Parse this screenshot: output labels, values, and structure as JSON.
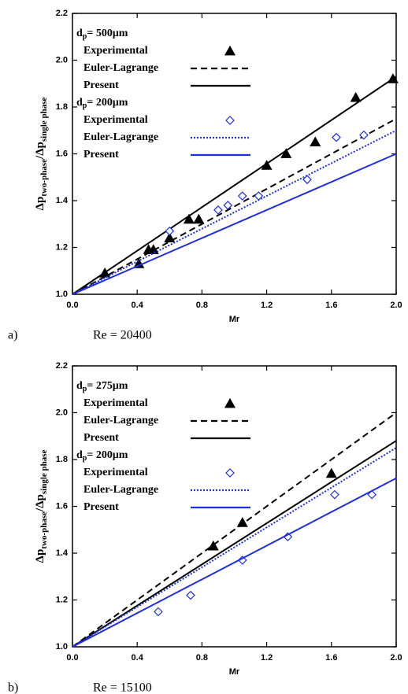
{
  "chart_data": [
    {
      "type": "line",
      "caption_label": "a)",
      "caption": "Re = 20400",
      "x_label": "Mr",
      "y_label": {
        "main1": "Δp",
        "sub1": "two-phase",
        "sep": "/",
        "main2": "Δp",
        "sub2": "single phase"
      },
      "xlim": [
        0,
        2
      ],
      "ylim": [
        1,
        2.2
      ],
      "xticks": [
        {
          "value": 0,
          "label": "0.0"
        },
        {
          "value": 0.4,
          "label": "0.4"
        },
        {
          "value": 0.8,
          "label": "0.8"
        },
        {
          "value": 1.2,
          "label": "1.2"
        },
        {
          "value": 1.6,
          "label": "1.6"
        },
        {
          "value": 2,
          "label": "2.0"
        }
      ],
      "yticks": [
        {
          "value": 1,
          "label": "1.0"
        },
        {
          "value": 1.2,
          "label": "1.2"
        },
        {
          "value": 1.4,
          "label": "1.4"
        },
        {
          "value": 1.6,
          "label": "1.6"
        },
        {
          "value": 1.8,
          "label": "1.8"
        },
        {
          "value": 2,
          "label": "2.0"
        },
        {
          "value": 2.2,
          "label": "2.2"
        }
      ],
      "groups": [
        {
          "heading": {
            "main": "d",
            "sub": "p",
            "rest": "= 500μm"
          },
          "series": [
            {
              "name": "Experimental",
              "style": "triangle",
              "color": "#000000",
              "x": [
                0.2,
                0.41,
                0.47,
                0.5,
                0.6,
                0.72,
                0.78,
                1.2,
                1.32,
                1.5,
                1.75,
                1.98
              ],
              "values": [
                1.09,
                1.13,
                1.19,
                1.19,
                1.24,
                1.32,
                1.32,
                1.55,
                1.6,
                1.65,
                1.84,
                1.92
              ]
            },
            {
              "name": "Euler-Lagrange",
              "style": "dashed",
              "color": "#000000",
              "x": [
                0,
                2
              ],
              "values": [
                1,
                1.75
              ]
            },
            {
              "name": "Present",
              "style": "solid",
              "color": "#000000",
              "x": [
                0,
                2
              ],
              "values": [
                1,
                1.93
              ]
            }
          ]
        },
        {
          "heading": {
            "main": "d",
            "sub": "p",
            "rest": "= 200μm"
          },
          "series": [
            {
              "name": "Experimental",
              "style": "diamond",
              "color": "#1f2fe0",
              "x": [
                0.6,
                0.9,
                0.96,
                1.05,
                1.15,
                1.45,
                1.63,
                1.8
              ],
              "values": [
                1.27,
                1.36,
                1.38,
                1.42,
                1.42,
                1.49,
                1.67,
                1.68
              ]
            },
            {
              "name": "Euler-Lagrange",
              "style": "dotted",
              "color": "#1f2fe0",
              "x": [
                0,
                2
              ],
              "values": [
                1,
                1.7
              ]
            },
            {
              "name": "Present",
              "style": "solid",
              "color": "#1f2fe0",
              "x": [
                0,
                2
              ],
              "values": [
                1,
                1.6
              ]
            }
          ]
        }
      ]
    },
    {
      "type": "line",
      "caption_label": "b)",
      "caption": "Re = 15100",
      "x_label": "Mr",
      "y_label": {
        "main1": "Δp",
        "sub1": "two-phase",
        "sep": "/",
        "main2": "Δp",
        "sub2": "single phase"
      },
      "xlim": [
        0,
        2
      ],
      "ylim": [
        1,
        2.2
      ],
      "xticks": [
        {
          "value": 0,
          "label": "0.0"
        },
        {
          "value": 0.4,
          "label": "0.4"
        },
        {
          "value": 0.8,
          "label": "0.8"
        },
        {
          "value": 1.2,
          "label": "1.2"
        },
        {
          "value": 1.6,
          "label": "1.6"
        },
        {
          "value": 2,
          "label": "2.0"
        }
      ],
      "yticks": [
        {
          "value": 1,
          "label": "1.0"
        },
        {
          "value": 1.2,
          "label": "1.2"
        },
        {
          "value": 1.4,
          "label": "1.4"
        },
        {
          "value": 1.6,
          "label": "1.6"
        },
        {
          "value": 1.8,
          "label": "1.8"
        },
        {
          "value": 2,
          "label": "2.0"
        },
        {
          "value": 2.2,
          "label": "2.2"
        }
      ],
      "groups": [
        {
          "heading": {
            "main": "d",
            "sub": "p",
            "rest": "= 275μm"
          },
          "series": [
            {
              "name": "Experimental",
              "style": "triangle",
              "color": "#000000",
              "x": [
                0.87,
                1.05,
                1.6
              ],
              "values": [
                1.43,
                1.53,
                1.74
              ]
            },
            {
              "name": "Euler-Lagrange",
              "style": "dashed",
              "color": "#000000",
              "x": [
                0,
                2
              ],
              "values": [
                1,
                2.0
              ]
            },
            {
              "name": "Present",
              "style": "solid",
              "color": "#000000",
              "x": [
                0,
                2
              ],
              "values": [
                1,
                1.88
              ]
            }
          ]
        },
        {
          "heading": {
            "main": "d",
            "sub": "p",
            "rest": "= 200μm"
          },
          "series": [
            {
              "name": "Experimental",
              "style": "diamond",
              "color": "#1f2fe0",
              "x": [
                0.53,
                0.73,
                1.05,
                1.33,
                1.62,
                1.85
              ],
              "values": [
                1.15,
                1.22,
                1.37,
                1.47,
                1.65,
                1.65
              ]
            },
            {
              "name": "Euler-Lagrange",
              "style": "dotted",
              "color": "#1f2fe0",
              "x": [
                0,
                2
              ],
              "values": [
                1,
                1.85
              ]
            },
            {
              "name": "Present",
              "style": "solid",
              "color": "#1f2fe0",
              "x": [
                0,
                2
              ],
              "values": [
                1,
                1.72
              ]
            }
          ]
        }
      ]
    }
  ]
}
